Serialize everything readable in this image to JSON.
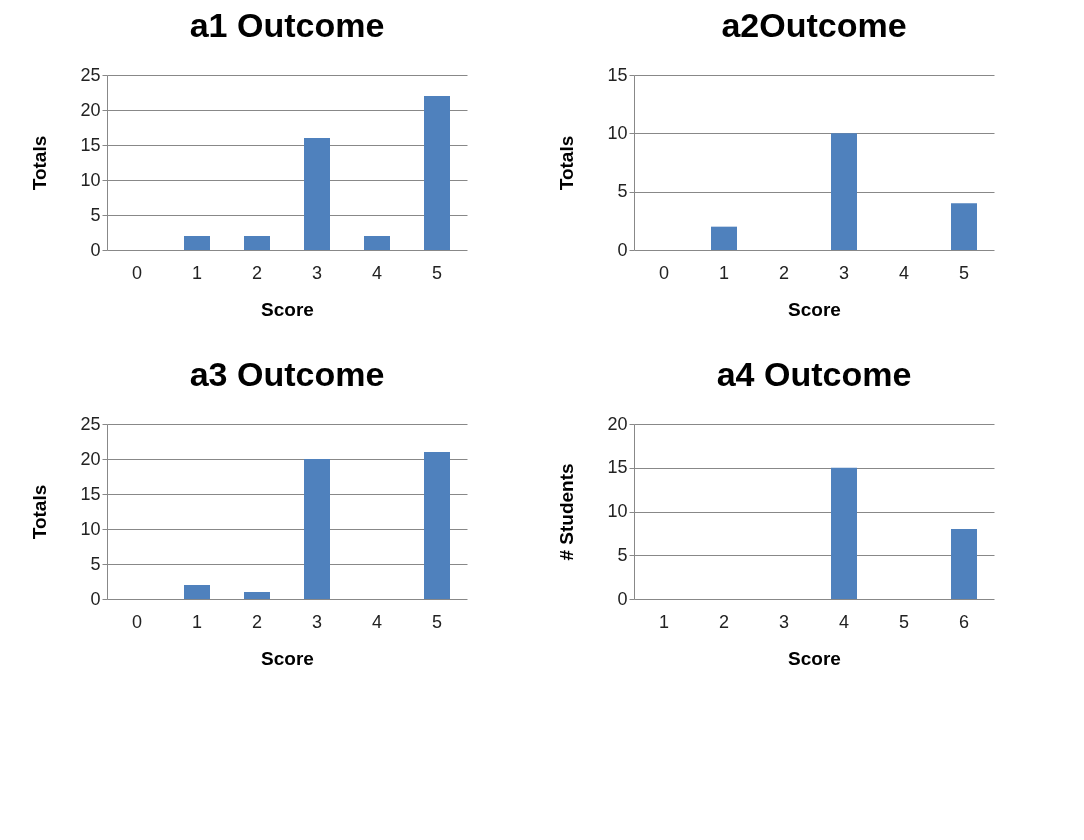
{
  "chart_data": [
    {
      "type": "bar",
      "title": "a1 Outcome",
      "xlabel": "Score",
      "ylabel": "Totals",
      "categories": [
        "0",
        "1",
        "2",
        "3",
        "4",
        "5"
      ],
      "values": [
        0,
        2,
        2,
        16,
        2,
        22
      ],
      "color": "#4f81bd",
      "ylim": [
        0,
        25
      ],
      "yticks": [
        0,
        5,
        10,
        15,
        20,
        25
      ],
      "grid": "y"
    },
    {
      "type": "bar",
      "title": "a2Outcome",
      "xlabel": "Score",
      "ylabel": "Totals",
      "categories": [
        "0",
        "1",
        "2",
        "3",
        "4",
        "5"
      ],
      "values": [
        0,
        2,
        0,
        10,
        0,
        4
      ],
      "color": "#4f81bd",
      "ylim": [
        0,
        15
      ],
      "yticks": [
        0,
        5,
        10,
        15
      ],
      "grid": "y"
    },
    {
      "type": "bar",
      "title": "a3 Outcome",
      "xlabel": "Score",
      "ylabel": "Totals",
      "categories": [
        "0",
        "1",
        "2",
        "3",
        "4",
        "5"
      ],
      "values": [
        0,
        2,
        1,
        20,
        0,
        21
      ],
      "color": "#4f81bd",
      "ylim": [
        0,
        25
      ],
      "yticks": [
        0,
        5,
        10,
        15,
        20,
        25
      ],
      "grid": "y"
    },
    {
      "type": "bar",
      "title": "a4 Outcome",
      "xlabel": "Score",
      "ylabel": "# Students",
      "categories": [
        "1",
        "2",
        "3",
        "4",
        "5",
        "6"
      ],
      "values": [
        0,
        0,
        0,
        15,
        0,
        8
      ],
      "color": "#4f81bd",
      "ylim": [
        0,
        20
      ],
      "yticks": [
        0,
        5,
        10,
        15,
        20
      ],
      "grid": "y"
    }
  ]
}
